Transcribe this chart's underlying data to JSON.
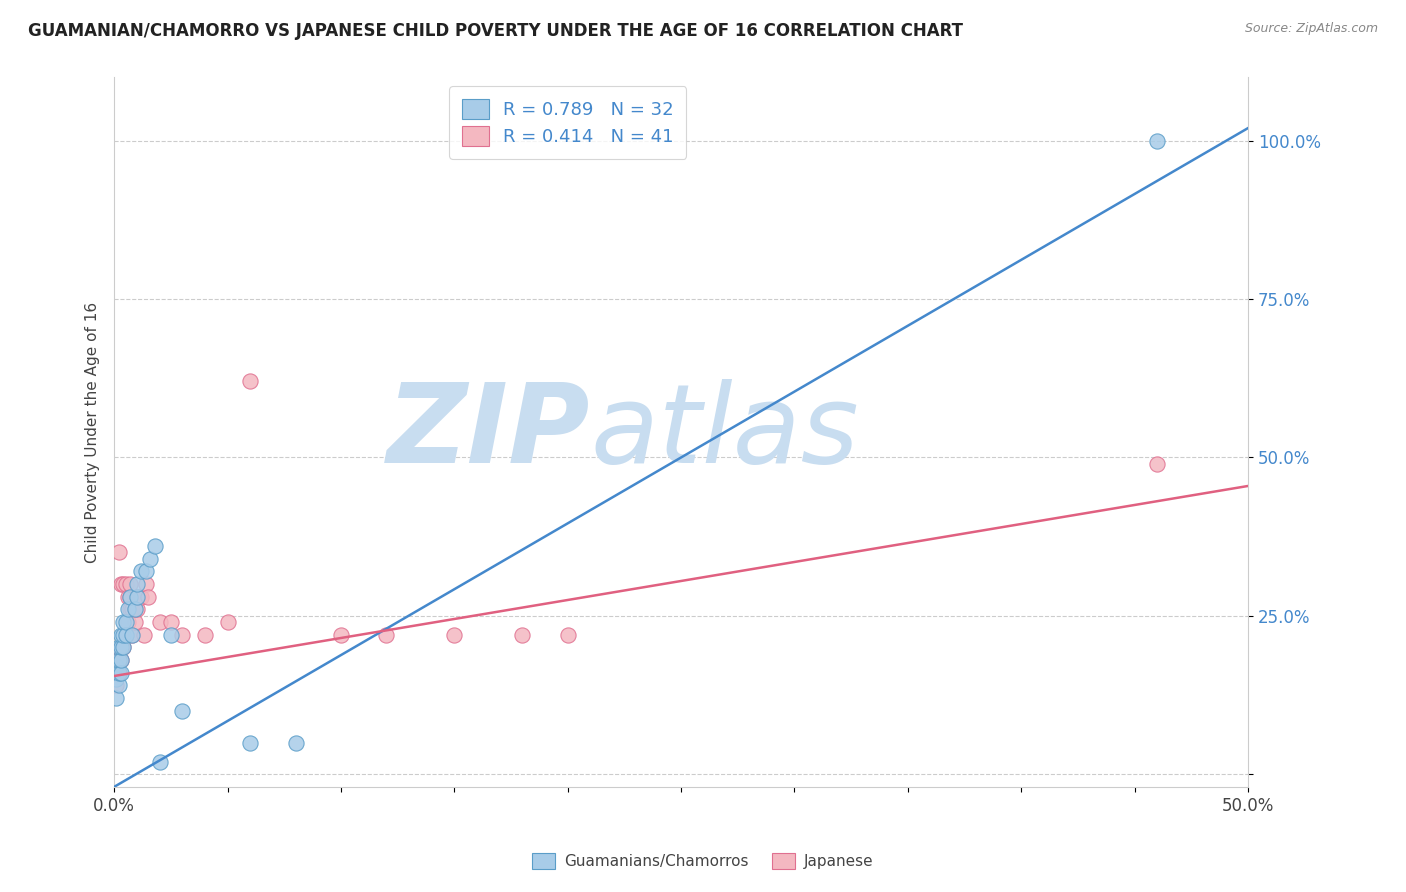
{
  "title": "GUAMANIAN/CHAMORRO VS JAPANESE CHILD POVERTY UNDER THE AGE OF 16 CORRELATION CHART",
  "source": "Source: ZipAtlas.com",
  "ylabel": "Child Poverty Under the Age of 16",
  "xlim": [
    0.0,
    0.5
  ],
  "ylim": [
    -0.02,
    1.1
  ],
  "blue_R": 0.789,
  "blue_N": 32,
  "pink_R": 0.414,
  "pink_N": 41,
  "blue_color": "#a8cce8",
  "pink_color": "#f4b8c1",
  "blue_edge_color": "#5a9dc8",
  "pink_edge_color": "#e07090",
  "blue_line_color": "#4488cc",
  "pink_line_color": "#e06080",
  "axis_tick_color": "#4488cc",
  "watermark_zip_color": "#c8ddf0",
  "watermark_atlas_color": "#c8ddf0",
  "legend_label_blue": "Guamanians/Chamorros",
  "legend_label_pink": "Japanese",
  "blue_line_x0": 0.0,
  "blue_line_y0": -0.02,
  "blue_line_x1": 0.5,
  "blue_line_y1": 1.02,
  "pink_line_x0": 0.0,
  "pink_line_y0": 0.155,
  "pink_line_x1": 0.5,
  "pink_line_y1": 0.455,
  "blue_scatter_x": [
    0.001,
    0.001,
    0.001,
    0.002,
    0.002,
    0.002,
    0.002,
    0.003,
    0.003,
    0.003,
    0.003,
    0.004,
    0.004,
    0.004,
    0.005,
    0.005,
    0.006,
    0.007,
    0.008,
    0.009,
    0.01,
    0.01,
    0.012,
    0.014,
    0.016,
    0.018,
    0.02,
    0.025,
    0.03,
    0.06,
    0.08,
    0.46
  ],
  "blue_scatter_y": [
    0.12,
    0.15,
    0.17,
    0.14,
    0.16,
    0.18,
    0.2,
    0.16,
    0.18,
    0.2,
    0.22,
    0.2,
    0.22,
    0.24,
    0.22,
    0.24,
    0.26,
    0.28,
    0.22,
    0.26,
    0.28,
    0.3,
    0.32,
    0.32,
    0.34,
    0.36,
    0.02,
    0.22,
    0.1,
    0.05,
    0.05,
    1.0
  ],
  "pink_scatter_x": [
    0.001,
    0.001,
    0.001,
    0.002,
    0.002,
    0.002,
    0.003,
    0.003,
    0.003,
    0.004,
    0.004,
    0.005,
    0.005,
    0.006,
    0.006,
    0.007,
    0.007,
    0.007,
    0.008,
    0.008,
    0.009,
    0.009,
    0.01,
    0.01,
    0.011,
    0.012,
    0.013,
    0.014,
    0.015,
    0.02,
    0.025,
    0.03,
    0.04,
    0.05,
    0.06,
    0.1,
    0.12,
    0.15,
    0.18,
    0.2,
    0.46
  ],
  "pink_scatter_y": [
    0.14,
    0.16,
    0.18,
    0.16,
    0.18,
    0.35,
    0.18,
    0.2,
    0.3,
    0.2,
    0.3,
    0.22,
    0.3,
    0.24,
    0.28,
    0.26,
    0.28,
    0.3,
    0.22,
    0.26,
    0.24,
    0.26,
    0.26,
    0.28,
    0.28,
    0.28,
    0.22,
    0.3,
    0.28,
    0.24,
    0.24,
    0.22,
    0.22,
    0.24,
    0.62,
    0.22,
    0.22,
    0.22,
    0.22,
    0.22,
    0.49
  ]
}
